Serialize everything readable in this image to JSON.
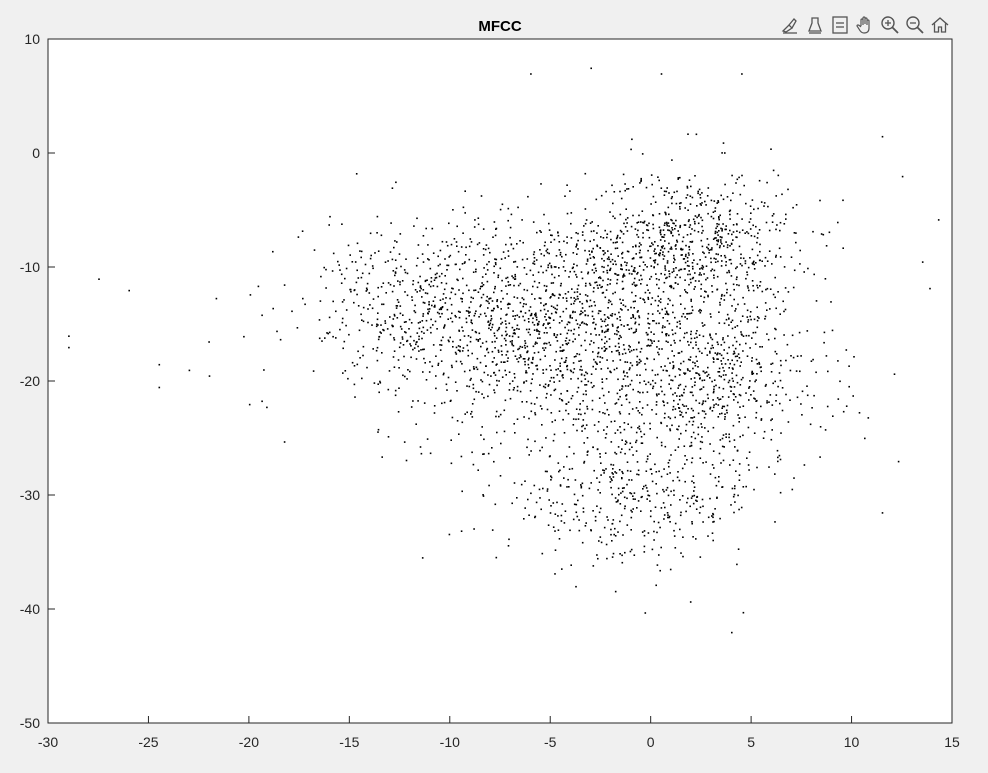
{
  "window": {
    "toolbar": [
      {
        "name": "brush-icon",
        "label": "Brush/Select Data"
      },
      {
        "name": "data-cursor-icon",
        "label": "Data Tips"
      },
      {
        "name": "legend-icon",
        "label": "Insert Legend"
      },
      {
        "name": "pan-icon",
        "label": "Pan"
      },
      {
        "name": "zoom-in-icon",
        "label": "Zoom In"
      },
      {
        "name": "zoom-out-icon",
        "label": "Zoom Out"
      },
      {
        "name": "home-icon",
        "label": "Restore View"
      }
    ]
  },
  "chart_data": {
    "type": "scatter",
    "title": "MFCC",
    "xlabel": "",
    "ylabel": "",
    "xlim": [
      -30,
      15
    ],
    "ylim": [
      -50,
      10
    ],
    "xticks": [
      -30,
      -25,
      -20,
      -15,
      -10,
      -5,
      0,
      5,
      10,
      15
    ],
    "yticks": [
      10,
      0,
      -10,
      -20,
      -30,
      -40,
      -50
    ],
    "xtick_labels": [
      "-30",
      "-25",
      "-20",
      "-15",
      "-10",
      "-5",
      "0",
      "5",
      "10",
      "15"
    ],
    "ytick_labels": [
      "10",
      "0",
      "-10",
      "-20",
      "-30",
      "-40",
      "-50"
    ],
    "grid": false,
    "marker": ".",
    "marker_color": "#000000",
    "n_points_approx": 3500,
    "clusters": [
      {
        "center_x": -5,
        "center_y": -15,
        "spread_x": 5.5,
        "spread_y": 6.5,
        "n": 1400
      },
      {
        "center_x": 2,
        "center_y": -8,
        "spread_x": 3.5,
        "spread_y": 4.5,
        "n": 700
      },
      {
        "center_x": 3,
        "center_y": -20,
        "spread_x": 4.0,
        "spread_y": 5.0,
        "n": 600
      },
      {
        "center_x": -1,
        "center_y": -30,
        "spread_x": 4.5,
        "spread_y": 4.0,
        "n": 450
      },
      {
        "center_x": -12,
        "center_y": -13,
        "spread_x": 4.0,
        "spread_y": 5.0,
        "n": 350
      }
    ],
    "outliers": [
      {
        "x": -29,
        "y": -16
      },
      {
        "x": -29,
        "y": -17
      },
      {
        "x": -27.5,
        "y": -11
      },
      {
        "x": -26,
        "y": -12
      },
      {
        "x": -24.5,
        "y": -18.5
      },
      {
        "x": -24.5,
        "y": -20.5
      },
      {
        "x": -23,
        "y": -19
      },
      {
        "x": -22,
        "y": -19.5
      },
      {
        "x": -20,
        "y": -22
      },
      {
        "x": 14.3,
        "y": -5.8
      },
      {
        "x": 13.5,
        "y": -9.5
      },
      {
        "x": 12.5,
        "y": -2
      },
      {
        "x": 12.3,
        "y": -27
      },
      {
        "x": 11.5,
        "y": -31.5
      },
      {
        "x": 4.5,
        "y": 7
      },
      {
        "x": 4,
        "y": -42
      },
      {
        "x": 0.5,
        "y": 7
      },
      {
        "x": -3,
        "y": 7.5
      },
      {
        "x": -6,
        "y": 7
      },
      {
        "x": 11.5,
        "y": 1.5
      }
    ]
  }
}
